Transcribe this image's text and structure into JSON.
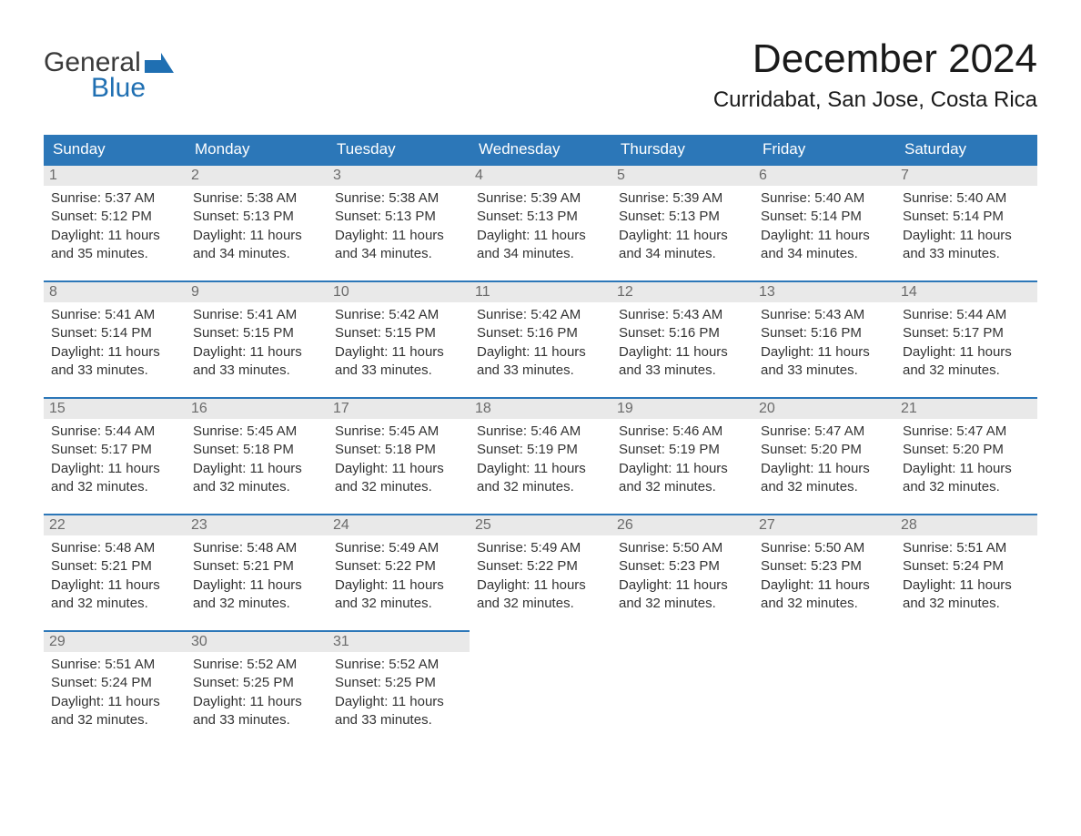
{
  "logo": {
    "line1": "General",
    "line2": "Blue"
  },
  "title": "December 2024",
  "location": "Curridabat, San Jose, Costa Rica",
  "colors": {
    "header_bg": "#2c77b8",
    "header_text": "#ffffff",
    "daynum_bg": "#e9e9e9",
    "daynum_border": "#2c77b8",
    "body_text": "#333333",
    "logo_blue": "#1f6fb2"
  },
  "font": {
    "family": "Arial",
    "title_size": 44,
    "location_size": 24,
    "header_size": 17,
    "body_size": 15
  },
  "weekdays": [
    "Sunday",
    "Monday",
    "Tuesday",
    "Wednesday",
    "Thursday",
    "Friday",
    "Saturday"
  ],
  "days": [
    {
      "n": "1",
      "sunrise": "5:37 AM",
      "sunset": "5:12 PM",
      "daylight": "11 hours and 35 minutes."
    },
    {
      "n": "2",
      "sunrise": "5:38 AM",
      "sunset": "5:13 PM",
      "daylight": "11 hours and 34 minutes."
    },
    {
      "n": "3",
      "sunrise": "5:38 AM",
      "sunset": "5:13 PM",
      "daylight": "11 hours and 34 minutes."
    },
    {
      "n": "4",
      "sunrise": "5:39 AM",
      "sunset": "5:13 PM",
      "daylight": "11 hours and 34 minutes."
    },
    {
      "n": "5",
      "sunrise": "5:39 AM",
      "sunset": "5:13 PM",
      "daylight": "11 hours and 34 minutes."
    },
    {
      "n": "6",
      "sunrise": "5:40 AM",
      "sunset": "5:14 PM",
      "daylight": "11 hours and 34 minutes."
    },
    {
      "n": "7",
      "sunrise": "5:40 AM",
      "sunset": "5:14 PM",
      "daylight": "11 hours and 33 minutes."
    },
    {
      "n": "8",
      "sunrise": "5:41 AM",
      "sunset": "5:14 PM",
      "daylight": "11 hours and 33 minutes."
    },
    {
      "n": "9",
      "sunrise": "5:41 AM",
      "sunset": "5:15 PM",
      "daylight": "11 hours and 33 minutes."
    },
    {
      "n": "10",
      "sunrise": "5:42 AM",
      "sunset": "5:15 PM",
      "daylight": "11 hours and 33 minutes."
    },
    {
      "n": "11",
      "sunrise": "5:42 AM",
      "sunset": "5:16 PM",
      "daylight": "11 hours and 33 minutes."
    },
    {
      "n": "12",
      "sunrise": "5:43 AM",
      "sunset": "5:16 PM",
      "daylight": "11 hours and 33 minutes."
    },
    {
      "n": "13",
      "sunrise": "5:43 AM",
      "sunset": "5:16 PM",
      "daylight": "11 hours and 33 minutes."
    },
    {
      "n": "14",
      "sunrise": "5:44 AM",
      "sunset": "5:17 PM",
      "daylight": "11 hours and 32 minutes."
    },
    {
      "n": "15",
      "sunrise": "5:44 AM",
      "sunset": "5:17 PM",
      "daylight": "11 hours and 32 minutes."
    },
    {
      "n": "16",
      "sunrise": "5:45 AM",
      "sunset": "5:18 PM",
      "daylight": "11 hours and 32 minutes."
    },
    {
      "n": "17",
      "sunrise": "5:45 AM",
      "sunset": "5:18 PM",
      "daylight": "11 hours and 32 minutes."
    },
    {
      "n": "18",
      "sunrise": "5:46 AM",
      "sunset": "5:19 PM",
      "daylight": "11 hours and 32 minutes."
    },
    {
      "n": "19",
      "sunrise": "5:46 AM",
      "sunset": "5:19 PM",
      "daylight": "11 hours and 32 minutes."
    },
    {
      "n": "20",
      "sunrise": "5:47 AM",
      "sunset": "5:20 PM",
      "daylight": "11 hours and 32 minutes."
    },
    {
      "n": "21",
      "sunrise": "5:47 AM",
      "sunset": "5:20 PM",
      "daylight": "11 hours and 32 minutes."
    },
    {
      "n": "22",
      "sunrise": "5:48 AM",
      "sunset": "5:21 PM",
      "daylight": "11 hours and 32 minutes."
    },
    {
      "n": "23",
      "sunrise": "5:48 AM",
      "sunset": "5:21 PM",
      "daylight": "11 hours and 32 minutes."
    },
    {
      "n": "24",
      "sunrise": "5:49 AM",
      "sunset": "5:22 PM",
      "daylight": "11 hours and 32 minutes."
    },
    {
      "n": "25",
      "sunrise": "5:49 AM",
      "sunset": "5:22 PM",
      "daylight": "11 hours and 32 minutes."
    },
    {
      "n": "26",
      "sunrise": "5:50 AM",
      "sunset": "5:23 PM",
      "daylight": "11 hours and 32 minutes."
    },
    {
      "n": "27",
      "sunrise": "5:50 AM",
      "sunset": "5:23 PM",
      "daylight": "11 hours and 32 minutes."
    },
    {
      "n": "28",
      "sunrise": "5:51 AM",
      "sunset": "5:24 PM",
      "daylight": "11 hours and 32 minutes."
    },
    {
      "n": "29",
      "sunrise": "5:51 AM",
      "sunset": "5:24 PM",
      "daylight": "11 hours and 32 minutes."
    },
    {
      "n": "30",
      "sunrise": "5:52 AM",
      "sunset": "5:25 PM",
      "daylight": "11 hours and 33 minutes."
    },
    {
      "n": "31",
      "sunrise": "5:52 AM",
      "sunset": "5:25 PM",
      "daylight": "11 hours and 33 minutes."
    }
  ],
  "labels": {
    "sunrise_prefix": "Sunrise: ",
    "sunset_prefix": "Sunset: ",
    "daylight_prefix": "Daylight: "
  }
}
